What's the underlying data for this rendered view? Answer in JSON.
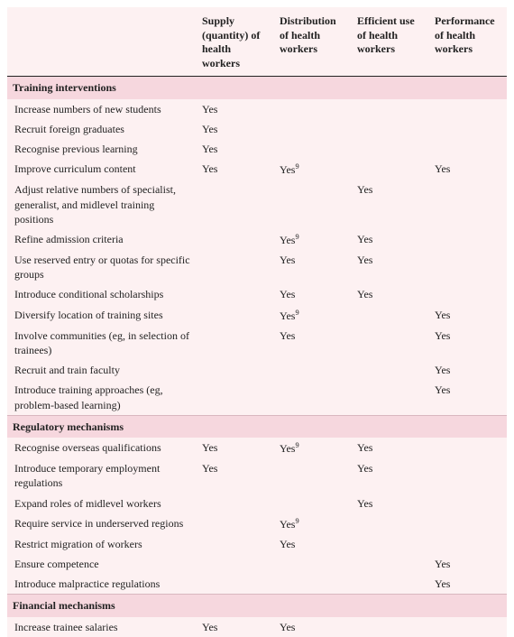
{
  "colors": {
    "page_bg": "#ffffff",
    "table_bg": "#fdf1f2",
    "section_bg": "#f6d7de",
    "header_border": "#222222",
    "text": "#222222"
  },
  "columns": [
    "Supply (quantity) of health workers",
    "Distribution of health workers",
    "Efficient use of health workers",
    "Performance of health workers"
  ],
  "yes": "Yes",
  "yes_sup": "Yes",
  "sup_char": "9",
  "sections": [
    {
      "title": "Training interventions",
      "rows": [
        {
          "label": "Increase numbers of new students",
          "cells": [
            "yes",
            "",
            "",
            ""
          ]
        },
        {
          "label": "Recruit foreign graduates",
          "cells": [
            "yes",
            "",
            "",
            ""
          ]
        },
        {
          "label": "Recognise previous learning",
          "cells": [
            "yes",
            "",
            "",
            ""
          ]
        },
        {
          "label": "Improve curriculum content",
          "cells": [
            "yes",
            "yes_sup",
            "",
            "yes"
          ]
        },
        {
          "label": "Adjust relative numbers of specialist, generalist, and midlevel training positions",
          "cells": [
            "",
            "",
            "yes",
            ""
          ]
        },
        {
          "label": "Refine admission criteria",
          "cells": [
            "",
            "yes_sup",
            "yes",
            ""
          ]
        },
        {
          "label": "Use reserved entry or quotas for specific groups",
          "cells": [
            "",
            "yes",
            "yes",
            ""
          ]
        },
        {
          "label": "Introduce conditional scholarships",
          "cells": [
            "",
            "yes",
            "yes",
            ""
          ]
        },
        {
          "label": "Diversify location of training sites",
          "cells": [
            "",
            "yes_sup",
            "",
            "yes"
          ]
        },
        {
          "label": "Involve communities (eg, in selection of trainees)",
          "cells": [
            "",
            "yes",
            "",
            "yes"
          ]
        },
        {
          "label": "Recruit and train faculty",
          "cells": [
            "",
            "",
            "",
            "yes"
          ]
        },
        {
          "label": "Introduce training approaches (eg, problem-based learning)",
          "cells": [
            "",
            "",
            "",
            "yes"
          ]
        }
      ]
    },
    {
      "title": "Regulatory mechanisms",
      "rows": [
        {
          "label": "Recognise overseas qualifications",
          "cells": [
            "yes",
            "yes_sup",
            "yes",
            ""
          ]
        },
        {
          "label": "Introduce temporary employment regulations",
          "cells": [
            "yes",
            "",
            "yes",
            ""
          ]
        },
        {
          "label": "Expand roles of midlevel workers",
          "cells": [
            "",
            "",
            "yes",
            ""
          ]
        },
        {
          "label": "Require service in underserved regions",
          "cells": [
            "",
            "yes_sup",
            "",
            ""
          ]
        },
        {
          "label": "Restrict migration of workers",
          "cells": [
            "",
            "yes",
            "",
            ""
          ]
        },
        {
          "label": "Ensure competence",
          "cells": [
            "",
            "",
            "",
            "yes"
          ]
        },
        {
          "label": "Introduce malpractice regulations",
          "cells": [
            "",
            "",
            "",
            "yes"
          ]
        }
      ]
    },
    {
      "title": "Financial mechanisms",
      "rows": [
        {
          "label": "Increase trainee salaries",
          "cells": [
            "yes",
            "yes",
            "",
            ""
          ]
        }
      ]
    }
  ]
}
